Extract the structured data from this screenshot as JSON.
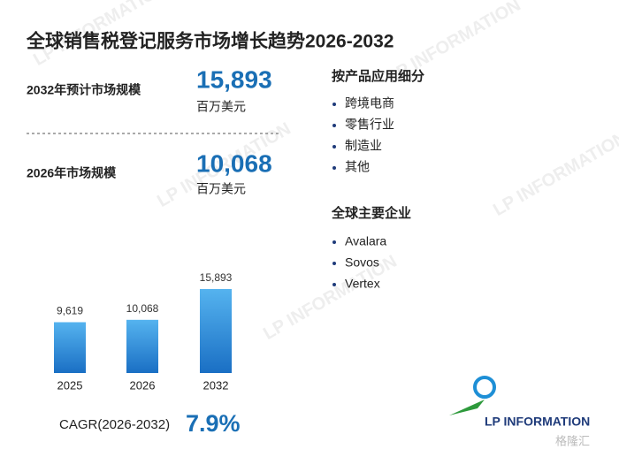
{
  "title": "全球销售税登记服务市场增长趋势2026-2032",
  "stats": [
    {
      "label": "2032年预计市场规模",
      "value": "15,893",
      "unit": "百万美元"
    },
    {
      "label": "2026年市场规模",
      "value": "10,068",
      "unit": "百万美元"
    }
  ],
  "segments": {
    "heading": "按产品应用细分",
    "items": [
      "跨境电商",
      "零售行业",
      "制造业",
      "其他"
    ]
  },
  "companies": {
    "heading": "全球主要企业",
    "items": [
      "Avalara",
      "Sovos",
      "Vertex"
    ]
  },
  "chart_data": {
    "type": "bar",
    "categories": [
      "2025",
      "2026",
      "2032"
    ],
    "values": [
      9619,
      10068,
      15893
    ],
    "value_labels": [
      "9,619",
      "10,068",
      "15,893"
    ],
    "color": "#2a86d6"
  },
  "cagr": {
    "label": "CAGR(2026-2032)",
    "value": "7.9%"
  },
  "logo": "LP INFORMATION",
  "watermark": "格隆汇"
}
